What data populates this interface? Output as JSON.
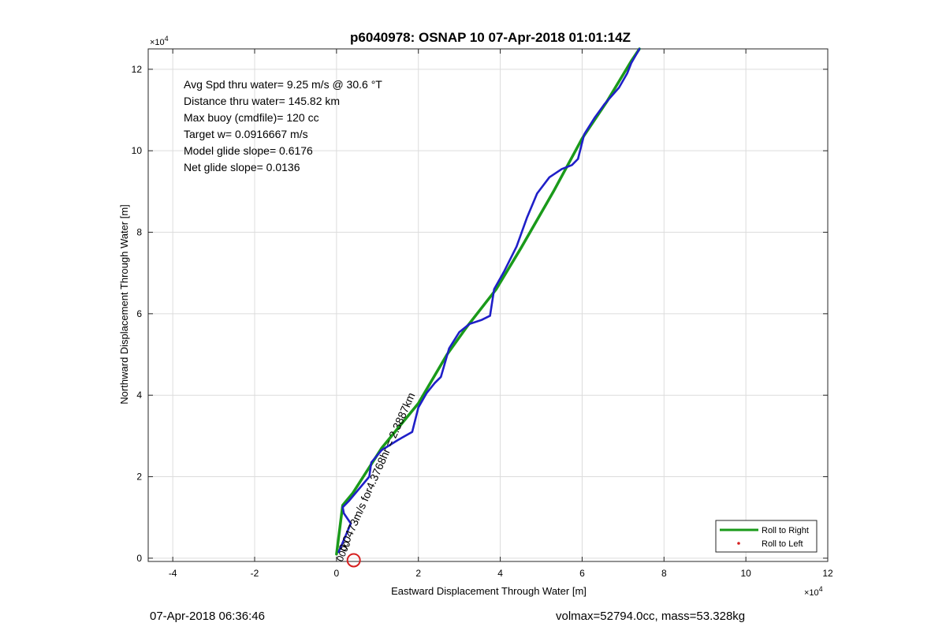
{
  "chart_data": {
    "type": "line",
    "title": "p6040978: OSNAP 10 07-Apr-2018 01:01:14Z",
    "xlabel": "Eastward Displacement Through Water [m]",
    "ylabel": "Northward Displacement Through Water [m]",
    "x_multiplier": "×10",
    "y_multiplier": "×10",
    "multiplier_exponent": "4",
    "xlim": [
      -4.6,
      12
    ],
    "ylim": [
      -0.08,
      12.5
    ],
    "xticks": [
      -4,
      -2,
      0,
      2,
      4,
      6,
      8,
      10,
      12
    ],
    "yticks": [
      0,
      2,
      4,
      6,
      8,
      10,
      12
    ],
    "grid": true,
    "legend_position": "bottom-right",
    "legend": [
      {
        "label": "Roll to Right",
        "color": "#1a9a1a",
        "style": "line"
      },
      {
        "label": "Roll to Left",
        "color": "#d62020",
        "style": "dot"
      }
    ],
    "info_lines": [
      "Avg Spd thru water=  9.25 m/s @  30.6 °T",
      "Distance thru water= 145.82 km",
      "Max buoy (cmdfile)= 120 cc",
      "Target w= 0.0916667 m/s",
      "Model glide slope= 0.6176",
      "Net glide slope= 0.0136"
    ],
    "annotation": "0.0473m/s for4.3768hr = 2.3887km",
    "overlap_text": "0000",
    "series": [
      {
        "name": "Roll to Right",
        "color": "#1a9a1a",
        "x": [
          0,
          0.15,
          0.4,
          1.1,
          2.0,
          2.7,
          3.2,
          3.9,
          4.5,
          5.3,
          6.0,
          6.6,
          7.2,
          7.4
        ],
        "y": [
          0.1,
          1.3,
          1.6,
          2.7,
          3.8,
          5.0,
          5.7,
          6.6,
          7.6,
          9.0,
          10.3,
          11.2,
          12.2,
          12.5
        ]
      },
      {
        "name": "glide track",
        "color": "#1f1fc8",
        "x": [
          0.05,
          0.2,
          0.35,
          0.18,
          0.15,
          0.3,
          0.55,
          0.8,
          0.85,
          1.1,
          1.5,
          1.85,
          2.0,
          2.2,
          2.4,
          2.55,
          2.65,
          2.75,
          3.0,
          3.25,
          3.55,
          3.75,
          3.85,
          4.1,
          4.4,
          4.65,
          4.9,
          5.2,
          5.5,
          5.75,
          5.9,
          6.05,
          6.3,
          6.55,
          6.9,
          7.1,
          7.2,
          7.4
        ],
        "y": [
          0.15,
          0.5,
          0.85,
          1.1,
          1.25,
          1.4,
          1.7,
          2.0,
          2.35,
          2.65,
          2.9,
          3.1,
          3.7,
          4.05,
          4.3,
          4.45,
          4.8,
          5.15,
          5.55,
          5.75,
          5.85,
          5.95,
          6.6,
          7.05,
          7.65,
          8.35,
          8.95,
          9.35,
          9.55,
          9.65,
          9.8,
          10.4,
          10.8,
          11.15,
          11.55,
          11.9,
          12.15,
          12.5
        ]
      }
    ],
    "start_marker": {
      "x": 0.42,
      "y": -0.05,
      "color": "#d62020"
    }
  },
  "footer": {
    "timestamp": "07-Apr-2018 06:36:46",
    "stats": "volmax=52794.0cc, mass=53.328kg"
  }
}
